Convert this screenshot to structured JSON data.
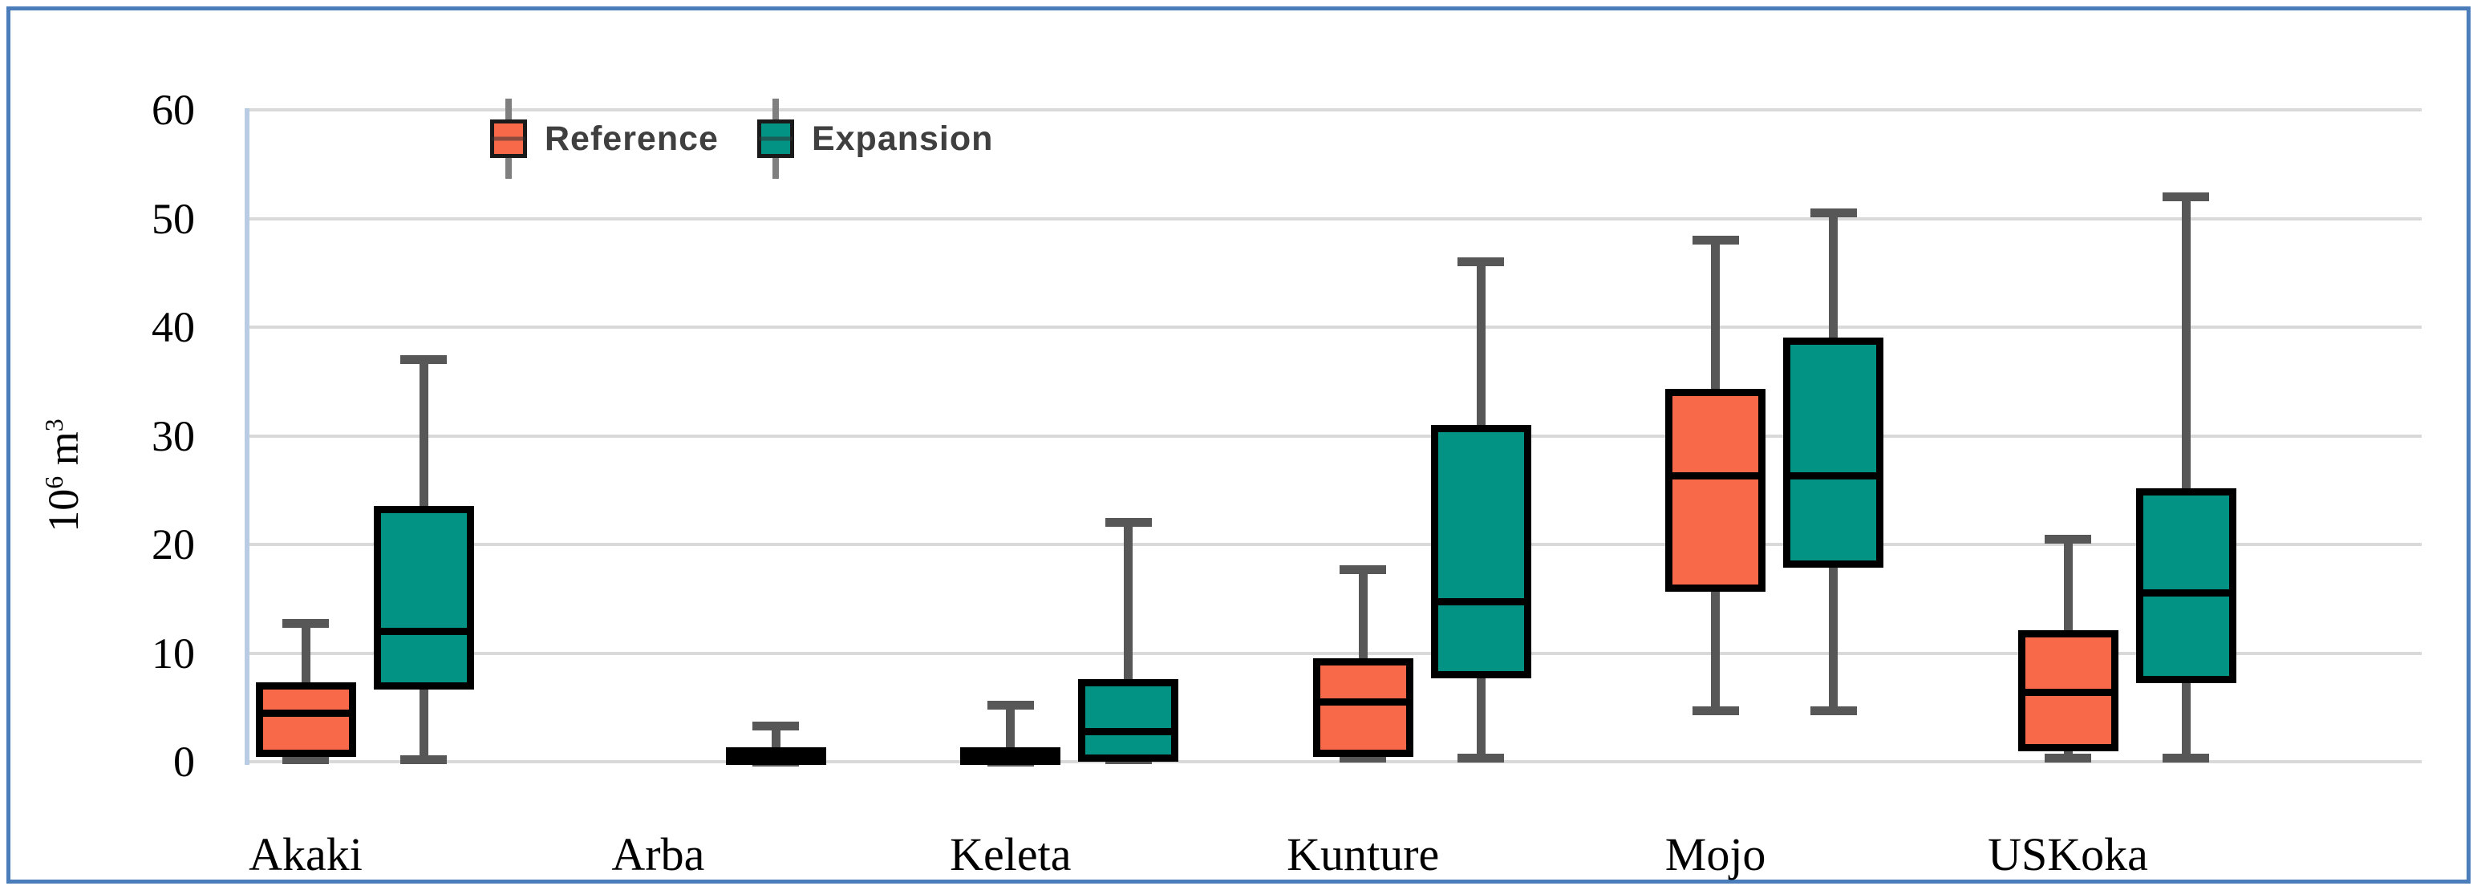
{
  "chart_data": {
    "type": "boxplot",
    "title": "",
    "ylabel": {
      "base": "10",
      "exponent": "6",
      "unit": "m",
      "unit_exponent": "3"
    },
    "ylim": [
      0,
      60
    ],
    "yticks": [
      0,
      10,
      20,
      30,
      40,
      50,
      60
    ],
    "grid": true,
    "legend_position": "top-inside-left",
    "categories": [
      "Akaki",
      "Arba",
      "Keleta",
      "Kunture",
      "Mojo",
      "USKoka"
    ],
    "series": [
      {
        "name": "Reference",
        "color": "#f8694a",
        "boxes": [
          {
            "min": 0.2,
            "q1": 0.8,
            "med": 4.5,
            "q3": 7.0,
            "max": 12.7
          },
          null,
          {
            "min": 0.0,
            "q1": 0.0,
            "med": 0.5,
            "q3": 1.0,
            "max": 5.2
          },
          {
            "min": 0.3,
            "q1": 0.8,
            "med": 5.5,
            "q3": 9.2,
            "max": 17.7
          },
          {
            "min": 4.7,
            "q1": 16.0,
            "med": 26.3,
            "q3": 34.0,
            "max": 48.0
          },
          {
            "min": 0.3,
            "q1": 1.3,
            "med": 6.4,
            "q3": 11.8,
            "max": 20.5
          }
        ]
      },
      {
        "name": "Expansion",
        "color": "#029384",
        "boxes": [
          {
            "min": 0.2,
            "q1": 7.0,
            "med": 12.0,
            "q3": 23.2,
            "max": 37.0
          },
          {
            "min": 0.0,
            "q1": 0.0,
            "med": 0.4,
            "q3": 1.0,
            "max": 3.3
          },
          {
            "min": 0.2,
            "q1": 0.3,
            "med": 2.8,
            "q3": 7.3,
            "max": 22.0
          },
          {
            "min": 0.3,
            "q1": 8.0,
            "med": 14.7,
            "q3": 30.7,
            "max": 46.0
          },
          {
            "min": 4.7,
            "q1": 18.2,
            "med": 26.3,
            "q3": 38.7,
            "max": 50.5
          },
          {
            "min": 0.3,
            "q1": 7.6,
            "med": 15.5,
            "q3": 24.8,
            "max": 52.0
          }
        ]
      }
    ]
  },
  "colors": {
    "reference_fill": "#f8694a",
    "expansion_fill": "#029384",
    "box_border": "#000000",
    "whisker": "#575757",
    "gridline": "#d9d9d9",
    "y_axis_line": "#b8cce4",
    "outer_border": "#4a7dba",
    "legend_text": "#3f3f3f",
    "background": "#ffffff"
  }
}
